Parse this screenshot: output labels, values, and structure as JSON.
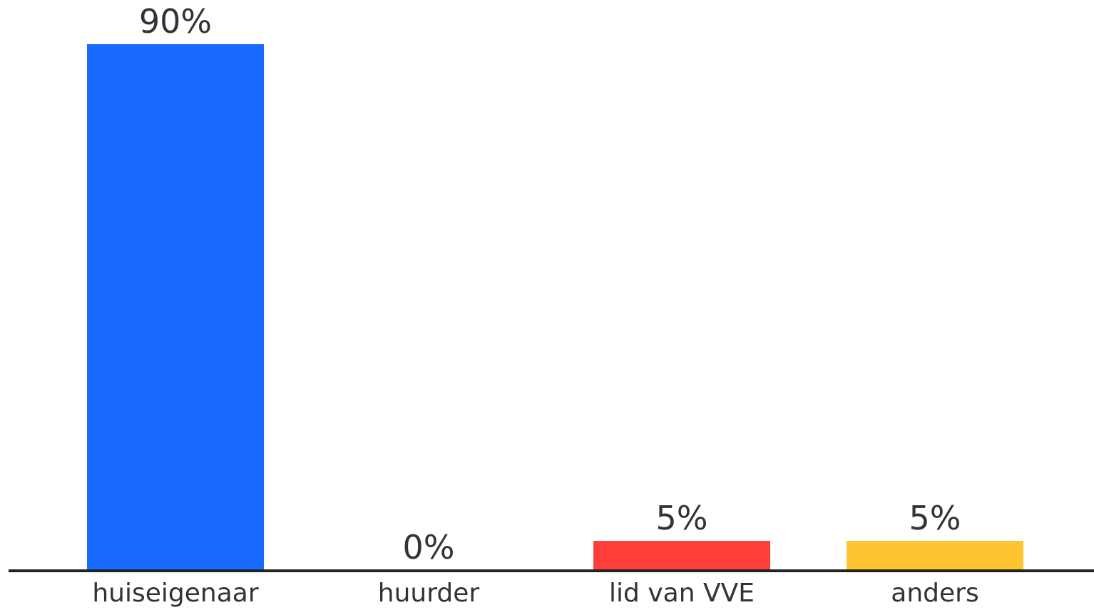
{
  "chart_data": {
    "type": "bar",
    "categories": [
      "huiseigenaar",
      "huurder",
      "lid van VVE",
      "anders"
    ],
    "values": [
      90,
      0,
      5,
      5
    ],
    "value_labels": [
      "90%",
      "0%",
      "5%",
      "5%"
    ],
    "colors": [
      "#1a6aff",
      "#1a6aff",
      "#ff3e3a",
      "#ffc531"
    ],
    "title": "",
    "xlabel": "",
    "ylabel": "",
    "ylim": [
      0,
      100
    ],
    "grid": false,
    "axis_color": "#222222"
  }
}
